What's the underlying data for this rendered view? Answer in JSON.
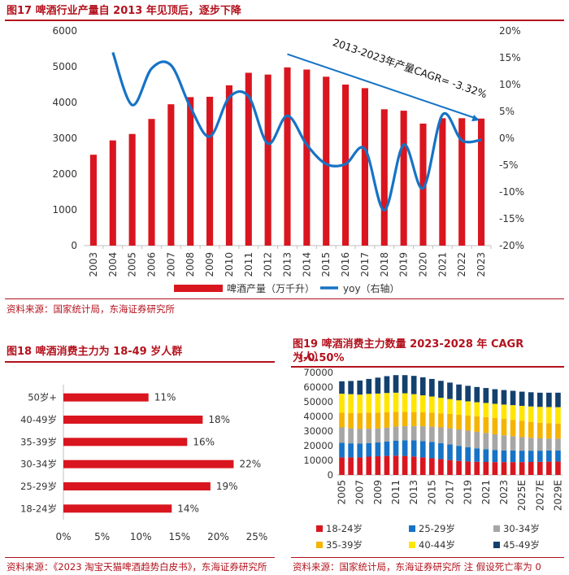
{
  "figure17": {
    "title": "图17  啤酒行业产量自 2013 年见顶后，逐步下降",
    "source": "资料来源：国家统计局，东海证券研究所"
  },
  "figure18": {
    "title": "图18  啤酒消费主力为 18-49 岁人群",
    "source": "资料来源：《2023 淘宝天猫啤酒趋势白皮书》，东海证券研究所"
  },
  "figure19": {
    "title_line1": "图19  啤酒消费主力数量 2023-2028 年 CAGR 为-0.50%",
    "title_line2": "（人）",
    "source": "资料来源：国家统计局，东海证券研究所  注  假设死亡率为 0"
  },
  "colors": {
    "red": "#d9161f",
    "blue": "#1673c6",
    "gray": "#a6a6a6",
    "orange": "#f5b400",
    "yellow": "#ffe600",
    "navy": "#14406e",
    "title": "#b3121d"
  },
  "chart_data": [
    {
      "id": "fig17",
      "type": "bar",
      "categories": [
        "2003",
        "2004",
        "2005",
        "2006",
        "2007",
        "2008",
        "2009",
        "2010",
        "2011",
        "2012",
        "2013",
        "2014",
        "2015",
        "2016",
        "2017",
        "2018",
        "2019",
        "2020",
        "2021",
        "2022",
        "2023"
      ],
      "series": [
        {
          "name": "啤酒产量（万千升）",
          "axis": "left",
          "type": "bar",
          "color": "#d9161f",
          "values": [
            2540,
            2940,
            3120,
            3540,
            3950,
            4150,
            4160,
            4480,
            4830,
            4780,
            4980,
            4920,
            4720,
            4500,
            4400,
            3810,
            3770,
            3410,
            3560,
            3560,
            3550
          ]
        },
        {
          "name": "yoy（右轴）",
          "axis": "right",
          "type": "line",
          "color": "#1673c6",
          "values": [
            null,
            16.0,
            6.2,
            13.0,
            13.6,
            5.8,
            0.3,
            7.6,
            7.8,
            -1.0,
            4.2,
            -1.2,
            -4.8,
            -4.8,
            -2.0,
            -13.4,
            -1.2,
            -9.3,
            4.4,
            -0.4,
            -0.3
          ]
        }
      ],
      "y_left": {
        "min": 0,
        "max": 6000,
        "ticks": [
          "0",
          "1000",
          "2000",
          "3000",
          "4000",
          "5000",
          "6000"
        ]
      },
      "y_right": {
        "min": -20,
        "max": 20,
        "ticks": [
          "-20%",
          "-15%",
          "-10%",
          "-5%",
          "0%",
          "5%",
          "10%",
          "15%",
          "20%"
        ]
      },
      "annotation": "2013-2023年产量CAGR= -3.32%",
      "legend": [
        "啤酒产量（万千升）",
        "yoy（右轴）"
      ]
    },
    {
      "id": "fig18",
      "type": "bar",
      "orientation": "horizontal",
      "categories": [
        "50岁+",
        "40-49岁",
        "35-39岁",
        "30-34岁",
        "25-29岁",
        "18-24岁"
      ],
      "values": [
        11,
        18,
        16,
        22,
        19,
        14
      ],
      "value_labels": [
        "11%",
        "18%",
        "16%",
        "22%",
        "19%",
        "14%"
      ],
      "x_range": [
        0,
        25
      ],
      "x_ticks": [
        "0%",
        "5%",
        "10%",
        "15%",
        "20%",
        "25%"
      ],
      "color": "#d9161f"
    },
    {
      "id": "fig19",
      "type": "bar",
      "stacked": true,
      "categories": [
        "2005",
        "2006",
        "2007",
        "2008",
        "2009",
        "2010",
        "2011",
        "2012",
        "2013",
        "2014",
        "2015",
        "2016",
        "2017",
        "2018",
        "2019",
        "2020",
        "2021",
        "2022",
        "2023",
        "2024E",
        "2025E",
        "2026E",
        "2027E",
        "2028E",
        "2029E"
      ],
      "x_tick_labels": [
        "2005",
        "2007",
        "2009",
        "2011",
        "2013",
        "2015",
        "2017",
        "2019",
        "2021",
        "2023",
        "2025E",
        "2027E",
        "2029E"
      ],
      "series": [
        {
          "name": "18-24岁",
          "color": "#d9161f",
          "values": [
            12000,
            12000,
            12000,
            12500,
            12800,
            13000,
            13200,
            13000,
            12600,
            12000,
            11400,
            10800,
            10200,
            9600,
            9200,
            9000,
            8900,
            8800,
            8800,
            8800,
            8800,
            8900,
            9000,
            9100,
            9200
          ]
        },
        {
          "name": "25-29岁",
          "color": "#1673c6",
          "values": [
            10000,
            9600,
            9400,
            9300,
            9400,
            9800,
            10300,
            10700,
            11000,
            11200,
            11200,
            11000,
            10700,
            10300,
            9800,
            9200,
            8700,
            8300,
            8000,
            7900,
            7800,
            7700,
            7600,
            7600,
            7600
          ]
        },
        {
          "name": "30-34岁",
          "color": "#a6a6a6",
          "values": [
            10500,
            10300,
            10000,
            9800,
            9600,
            9500,
            9500,
            9600,
            9800,
            10100,
            10400,
            10700,
            11000,
            11200,
            11300,
            11300,
            11100,
            10700,
            10300,
            9800,
            9300,
            8800,
            8400,
            8200,
            8000
          ]
        },
        {
          "name": "35-39岁",
          "color": "#f5b400",
          "values": [
            10000,
            10500,
            10800,
            11000,
            10800,
            10500,
            10100,
            9800,
            9600,
            9500,
            9500,
            9600,
            9800,
            10000,
            10300,
            10600,
            10900,
            11100,
            11200,
            11200,
            11100,
            10900,
            10700,
            10500,
            10300
          ]
        },
        {
          "name": "40-44岁",
          "color": "#ffe600",
          "values": [
            13000,
            12800,
            12700,
            12800,
            13000,
            13200,
            13100,
            12700,
            12200,
            11600,
            11100,
            10600,
            10200,
            9900,
            9700,
            9600,
            9600,
            9700,
            9800,
            10000,
            10200,
            10500,
            10800,
            11000,
            11200
          ]
        },
        {
          "name": "45-49岁",
          "color": "#14406e",
          "values": [
            8500,
            9000,
            9600,
            10200,
            10900,
            11500,
            12000,
            12400,
            12500,
            12300,
            12000,
            11600,
            11200,
            10800,
            10600,
            10400,
            10200,
            10000,
            9900,
            9800,
            9700,
            9700,
            9700,
            9800,
            9900
          ]
        }
      ],
      "y_range": [
        0,
        70000
      ],
      "y_ticks": [
        "0",
        "10000",
        "20000",
        "30000",
        "40000",
        "50000",
        "60000",
        "70000"
      ]
    }
  ]
}
